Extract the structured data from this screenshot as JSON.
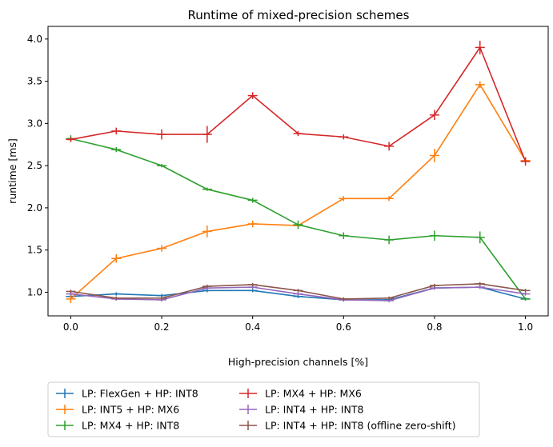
{
  "chart_data": {
    "type": "line",
    "title": "Runtime of mixed-precision schemes",
    "xlabel": "High-precision channels [%]",
    "ylabel": "runtime [ms]",
    "xlim": [
      -0.05,
      1.05
    ],
    "ylim": [
      0.72,
      4.15
    ],
    "xticks": [
      0.0,
      0.2,
      0.4,
      0.6,
      0.8,
      1.0
    ],
    "xtick_labels": [
      "0.0",
      "0.2",
      "0.4",
      "0.6",
      "0.8",
      "1.0"
    ],
    "yticks": [
      1.0,
      1.5,
      2.0,
      2.5,
      3.0,
      3.5,
      4.0
    ],
    "ytick_labels": [
      "1.0",
      "1.5",
      "2.0",
      "2.5",
      "3.0",
      "3.5",
      "4.0"
    ],
    "grid": false,
    "legend_position": "below-left",
    "x": [
      0.0,
      0.1,
      0.2,
      0.3,
      0.4,
      0.5,
      0.6,
      0.7,
      0.8,
      0.9,
      1.0
    ],
    "series": [
      {
        "name": "LP: FlexGen + HP: INT8",
        "color": "#1f77b4",
        "values": [
          0.95,
          0.98,
          0.96,
          1.02,
          1.02,
          0.95,
          0.91,
          0.91,
          1.05,
          1.06,
          0.92
        ],
        "errors": [
          0.02,
          0.02,
          0.02,
          0.02,
          0.02,
          0.02,
          0.02,
          0.02,
          0.02,
          0.02,
          0.02
        ]
      },
      {
        "name": "LP: INT5 + HP: MX6",
        "color": "#ff7f0e",
        "values": [
          0.92,
          1.4,
          1.52,
          1.72,
          1.81,
          1.79,
          2.11,
          2.11,
          2.62,
          3.46,
          2.56
        ],
        "errors": [
          0.05,
          0.05,
          0.04,
          0.07,
          0.04,
          0.04,
          0.03,
          0.03,
          0.08,
          0.04,
          0.03
        ]
      },
      {
        "name": "LP: MX4 + HP: INT8",
        "color": "#2ca02c",
        "values": [
          2.82,
          2.69,
          2.5,
          2.22,
          2.09,
          1.8,
          1.67,
          1.62,
          1.67,
          1.65,
          0.92
        ],
        "errors": [
          0.04,
          0.03,
          0.02,
          0.02,
          0.03,
          0.05,
          0.04,
          0.05,
          0.06,
          0.07,
          0.02
        ]
      },
      {
        "name": "LP: MX4 + HP: MX6",
        "color": "#d62728",
        "values": [
          2.81,
          2.91,
          2.87,
          2.87,
          3.33,
          2.88,
          2.84,
          2.73,
          3.1,
          3.9,
          2.55
        ],
        "errors": [
          0.03,
          0.04,
          0.06,
          0.1,
          0.04,
          0.03,
          0.03,
          0.05,
          0.06,
          0.08,
          0.05
        ]
      },
      {
        "name": "LP: INT4 + HP: INT8",
        "color": "#9467bd",
        "values": [
          0.98,
          0.92,
          0.91,
          1.05,
          1.06,
          0.98,
          0.91,
          0.9,
          1.05,
          1.06,
          0.98
        ],
        "errors": [
          0.02,
          0.02,
          0.02,
          0.02,
          0.02,
          0.02,
          0.02,
          0.02,
          0.02,
          0.02,
          0.02
        ]
      },
      {
        "name": "LP: INT4 + HP: INT8 (offline zero-shift)",
        "color": "#8c564b",
        "values": [
          1.01,
          0.93,
          0.93,
          1.07,
          1.09,
          1.02,
          0.92,
          0.93,
          1.08,
          1.1,
          1.02
        ],
        "errors": [
          0.02,
          0.02,
          0.02,
          0.02,
          0.02,
          0.02,
          0.02,
          0.02,
          0.02,
          0.02,
          0.02
        ]
      }
    ]
  }
}
